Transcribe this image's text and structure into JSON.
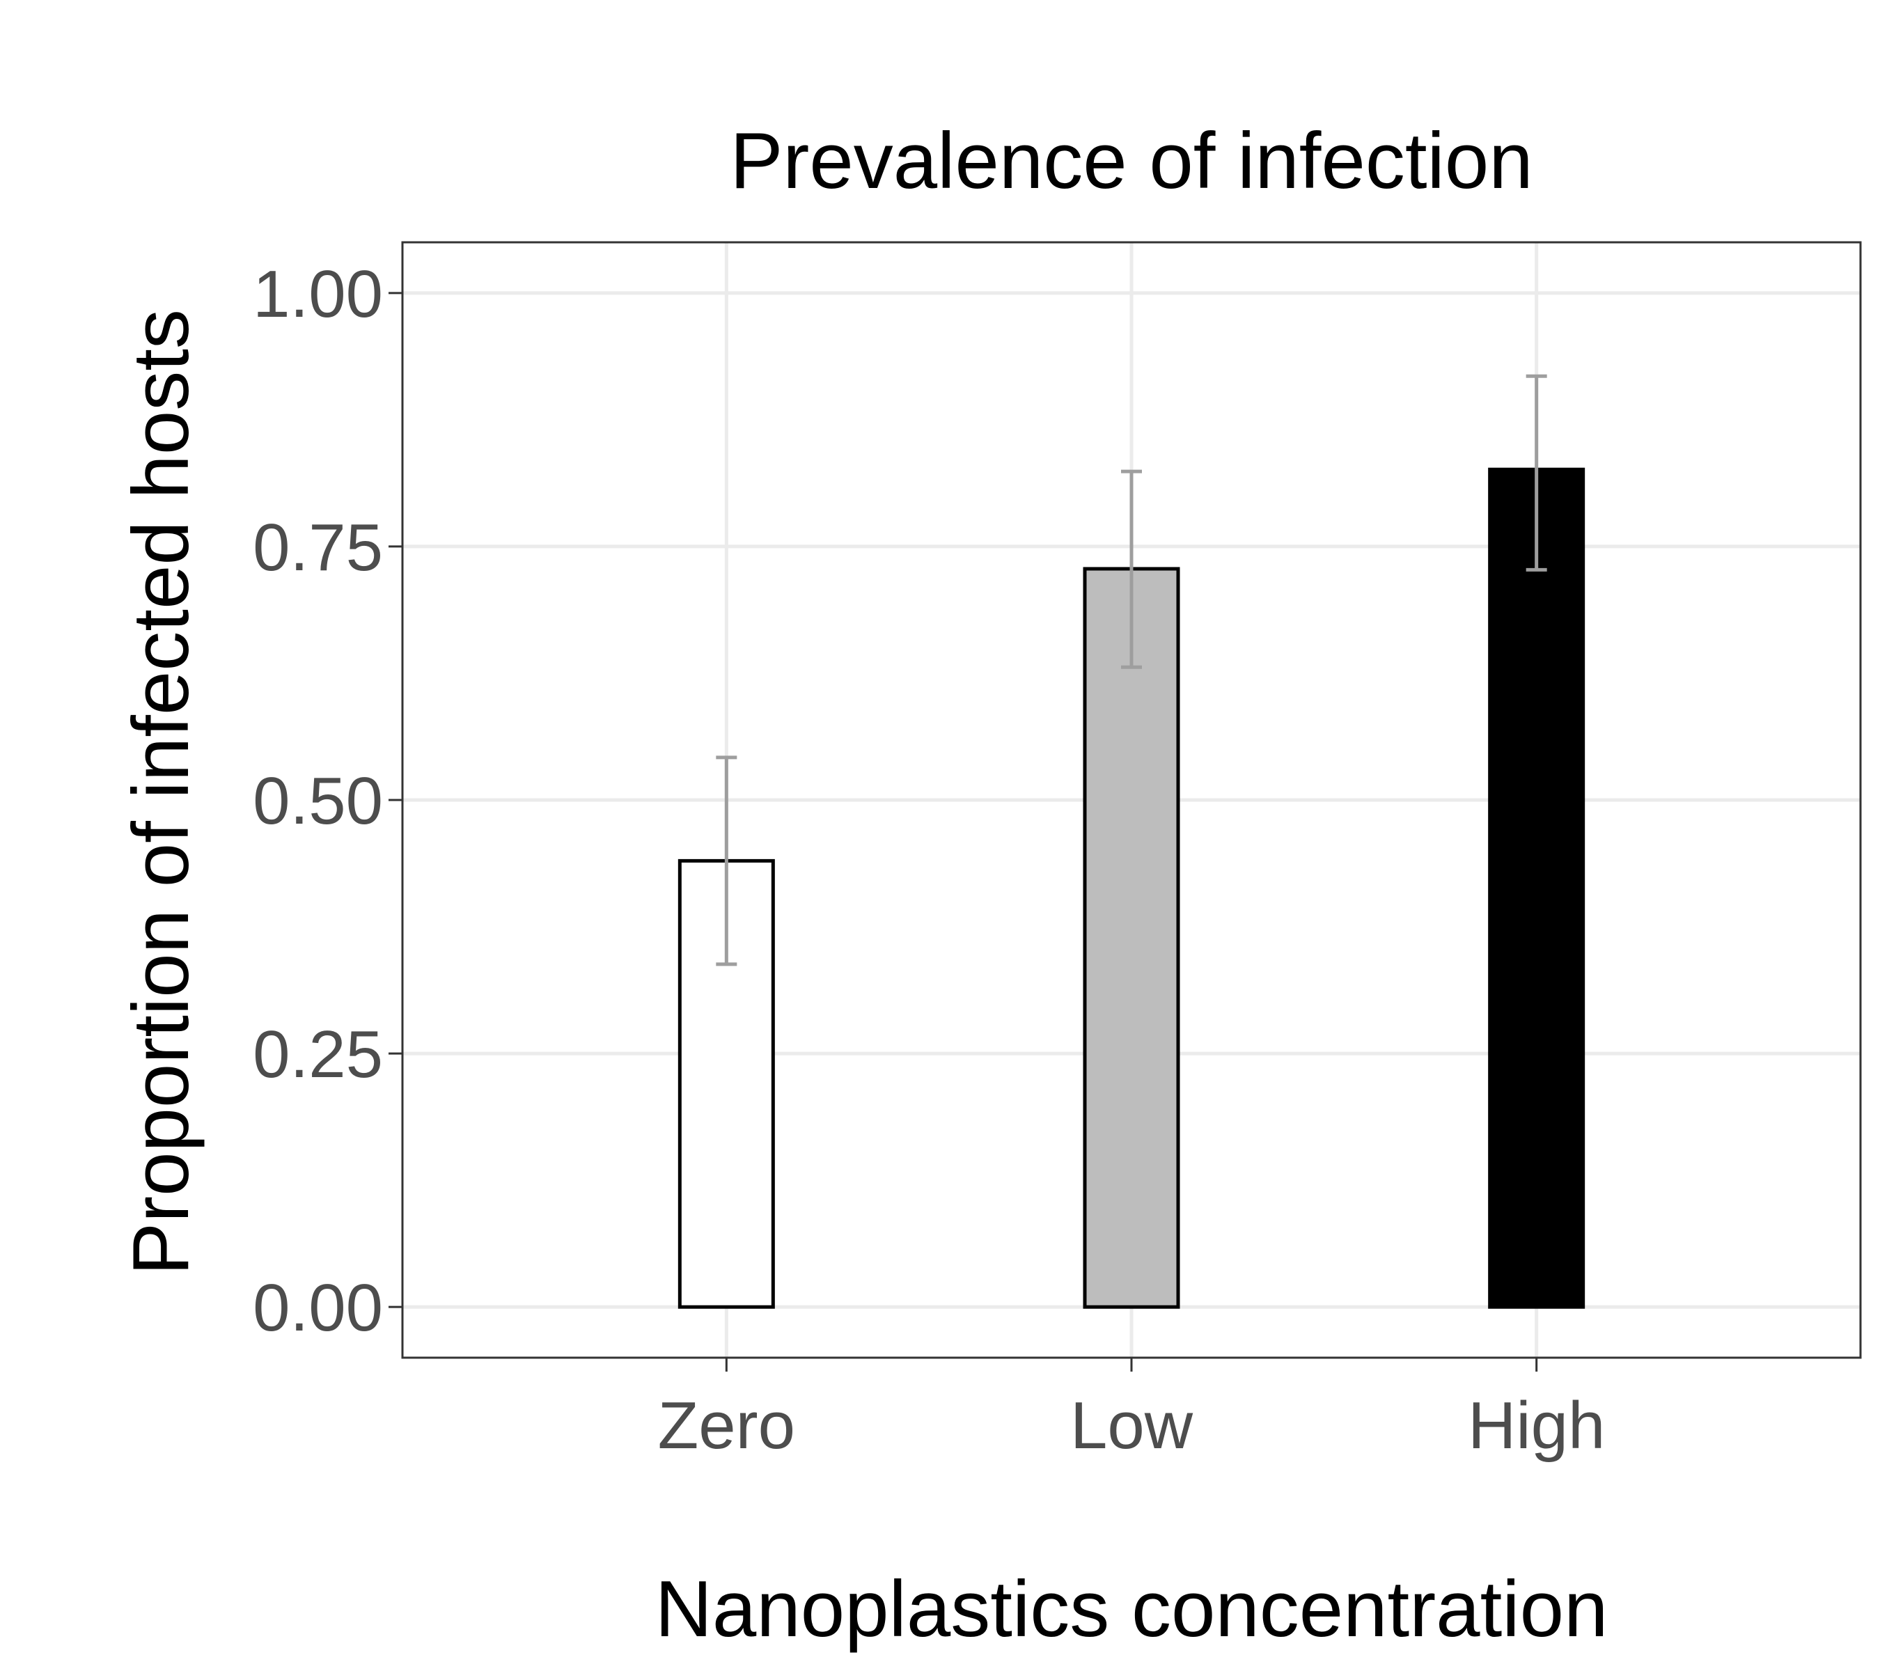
{
  "chart_data": {
    "type": "bar",
    "title": "Prevalence of infection",
    "xlabel": "Nanoplastics concentration",
    "ylabel": "Proportion of infected hosts",
    "categories": [
      "Zero",
      "Low",
      "High"
    ],
    "values": [
      0.44,
      0.728,
      0.826
    ],
    "error_bars": [
      {
        "low": 0.338,
        "high": 0.542
      },
      {
        "low": 0.631,
        "high": 0.824
      },
      {
        "low": 0.727,
        "high": 0.918
      }
    ],
    "bar_fills": [
      "#ffffff",
      "#bdbdbd",
      "#000000"
    ],
    "bar_outline": "#000000",
    "error_bar_color": "#9e9e9e",
    "ylim": [
      -0.05,
      1.05
    ],
    "yticks": [
      0,
      0.25,
      0.5,
      0.75,
      1
    ],
    "ytick_labels": [
      "0.00",
      "0.25",
      "0.50",
      "0.75",
      "1.00"
    ],
    "grid": true,
    "legend": "none"
  }
}
